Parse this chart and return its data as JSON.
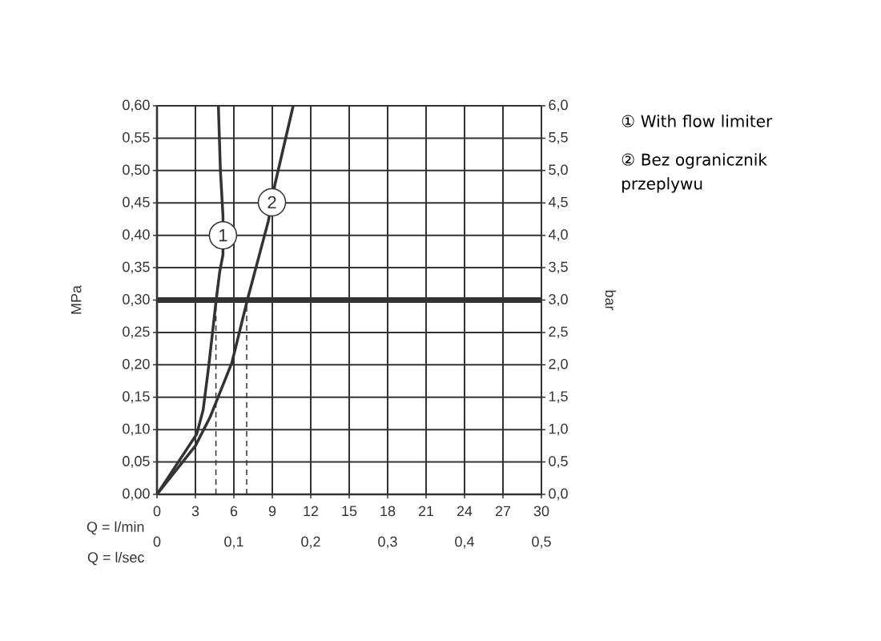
{
  "chart_data": {
    "type": "line",
    "xlabel": "Q = l/min",
    "x2label": "Q = l/sec",
    "ylabel": "MPa",
    "y2label": "bar",
    "xlim": [
      0,
      30
    ],
    "xticks": [
      0,
      3,
      6,
      9,
      12,
      15,
      18,
      21,
      24,
      27,
      30
    ],
    "x2lim": [
      0,
      0.5
    ],
    "x2ticks": [
      0,
      {
        "value": 0.1,
        "label": "0,1"
      },
      {
        "value": 0.2,
        "label": "0,2"
      },
      {
        "value": 0.3,
        "label": "0,3"
      },
      {
        "value": 0.4,
        "label": "0,4"
      },
      {
        "value": 0.5,
        "label": "0,5"
      }
    ],
    "ylim": [
      0,
      0.6
    ],
    "yticks": [
      {
        "value": 0,
        "label": "0,00"
      },
      {
        "value": 0.05,
        "label": "0,05"
      },
      {
        "value": 0.1,
        "label": "0,10"
      },
      {
        "value": 0.15,
        "label": "0,15"
      },
      {
        "value": 0.2,
        "label": "0,20"
      },
      {
        "value": 0.25,
        "label": "0,25"
      },
      {
        "value": 0.3,
        "label": "0,30"
      },
      {
        "value": 0.35,
        "label": "0,35"
      },
      {
        "value": 0.4,
        "label": "0,40"
      },
      {
        "value": 0.45,
        "label": "0,45"
      },
      {
        "value": 0.5,
        "label": "0,50"
      },
      {
        "value": 0.55,
        "label": "0,55"
      },
      {
        "value": 0.6,
        "label": "0,60"
      }
    ],
    "y2lim": [
      0,
      6
    ],
    "y2ticks": [
      {
        "value": 0,
        "label": "0,0"
      },
      {
        "value": 0.5,
        "label": "0,5"
      },
      {
        "value": 1,
        "label": "1,0"
      },
      {
        "value": 1.5,
        "label": "1,5"
      },
      {
        "value": 2,
        "label": "2,0"
      },
      {
        "value": 2.5,
        "label": "2,5"
      },
      {
        "value": 3,
        "label": "3,0"
      },
      {
        "value": 3.5,
        "label": "3,5"
      },
      {
        "value": 4,
        "label": "4,0"
      },
      {
        "value": 4.5,
        "label": "4,5"
      },
      {
        "value": 5,
        "label": "5,0"
      },
      {
        "value": 5.5,
        "label": "5,5"
      },
      {
        "value": 6,
        "label": "6,0"
      }
    ],
    "grid": true,
    "series": [
      {
        "color": "#333333",
        "x": [
          0,
          1.5,
          3.1,
          3.6,
          4.05,
          4.62,
          4.89,
          5.15,
          5.15,
          4.95,
          4.79
        ],
        "values": [
          0,
          0.045,
          0.093,
          0.13,
          0.2,
          0.3,
          0.343,
          0.37,
          0.43,
          0.5,
          0.6
        ]
      },
      {
        "color": "#333333",
        "x": [
          0,
          3.0,
          4.16,
          5.84,
          7.05,
          8.69,
          9.22,
          10.63
        ],
        "values": [
          0,
          0.075,
          0.12,
          0.203,
          0.3,
          0.422,
          0.48,
          0.6
        ]
      }
    ],
    "ref_lines": [
      {
        "axis": "y",
        "value": 0.3,
        "color": "#333333"
      },
      {
        "axis": "x",
        "value": 4.6,
        "color": "#333333",
        "line_style": "dashed"
      },
      {
        "axis": "x",
        "value": 7.0,
        "color": "#333333",
        "line_style": "dashed"
      }
    ],
    "annotations": [
      {
        "text": "1",
        "x": 5.15,
        "y": 0.4
      },
      {
        "text": "2",
        "x": 8.97,
        "y": 0.451
      },
      "① With flow limiter",
      "② Bez ogranicznik przeplywu"
    ]
  }
}
